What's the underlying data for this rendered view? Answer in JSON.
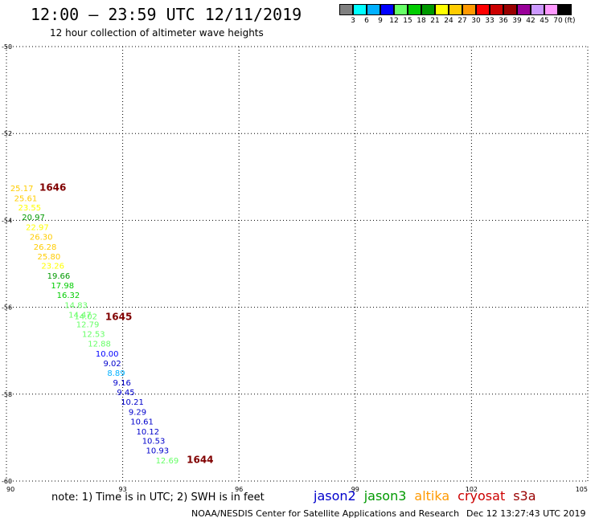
{
  "header": {
    "title": "12:00 – 23:59 UTC 12/11/2019",
    "subtitle": "12 hour collection of altimeter wave heights"
  },
  "colorbar": {
    "unit": "(ft)",
    "colors": [
      "#808080",
      "#00ffff",
      "#00b0ff",
      "#0000ff",
      "#66ff66",
      "#00cc00",
      "#009900",
      "#ffff00",
      "#ffcc00",
      "#ff9900",
      "#ff0000",
      "#cc0000",
      "#990000",
      "#990099",
      "#cc99ff",
      "#ff99ff",
      "#000000"
    ],
    "labels": [
      "3",
      "6",
      "9",
      "12",
      "15",
      "18",
      "21",
      "24",
      "27",
      "30",
      "33",
      "36",
      "39",
      "42",
      "45",
      "70"
    ]
  },
  "map": {
    "lon_range": [
      90,
      105
    ],
    "lat_range": [
      -60,
      -50
    ],
    "x_ticks": [
      "90",
      "93",
      "96",
      "99",
      "102",
      "105"
    ],
    "y_ticks": [
      "-50",
      "-52",
      "-54",
      "-56",
      "-58",
      "-60"
    ],
    "grid": "dotted"
  },
  "chart_data": {
    "type": "scatter",
    "x_label": "",
    "y_label": "",
    "points": [
      {
        "label": "25.17",
        "lon": 90.1,
        "lat": -53.25,
        "color": "#ffcc00"
      },
      {
        "label": "25.61",
        "lon": 90.2,
        "lat": -53.48,
        "color": "#ffcc00"
      },
      {
        "label": "23.55",
        "lon": 90.3,
        "lat": -53.7,
        "color": "#ffff00"
      },
      {
        "label": "20.97",
        "lon": 90.4,
        "lat": -53.92,
        "color": "#009900"
      },
      {
        "label": "22.97",
        "lon": 90.5,
        "lat": -54.15,
        "color": "#ffff00"
      },
      {
        "label": "26.30",
        "lon": 90.6,
        "lat": -54.37,
        "color": "#ffcc00"
      },
      {
        "label": "26.28",
        "lon": 90.7,
        "lat": -54.6,
        "color": "#ffcc00"
      },
      {
        "label": "25.80",
        "lon": 90.8,
        "lat": -54.82,
        "color": "#ffcc00"
      },
      {
        "label": "23.26",
        "lon": 90.9,
        "lat": -55.04,
        "color": "#ffff00"
      },
      {
        "label": "19.66",
        "lon": 91.05,
        "lat": -55.27,
        "color": "#009900"
      },
      {
        "label": "17.98",
        "lon": 91.15,
        "lat": -55.49,
        "color": "#00cc00"
      },
      {
        "label": "16.32",
        "lon": 91.3,
        "lat": -55.71,
        "color": "#00cc00"
      },
      {
        "label": "14.83",
        "lon": 91.5,
        "lat": -55.94,
        "color": "#66ff66"
      },
      {
        "label": "14.47",
        "lon": 91.6,
        "lat": -56.16,
        "color": "#66ff66"
      },
      {
        "label": "14.02",
        "lon": 91.75,
        "lat": -56.2,
        "color": "#66ff66"
      },
      {
        "label": "12.79",
        "lon": 91.8,
        "lat": -56.39,
        "color": "#66ff66"
      },
      {
        "label": "12.53",
        "lon": 91.95,
        "lat": -56.61,
        "color": "#66ff66"
      },
      {
        "label": "12.88",
        "lon": 92.1,
        "lat": -56.83,
        "color": "#66ff66"
      },
      {
        "label": "10.00",
        "lon": 92.3,
        "lat": -57.06,
        "color": "#0000ff"
      },
      {
        "label": "9.02",
        "lon": 92.5,
        "lat": -57.28,
        "color": "#0000cc"
      },
      {
        "label": "8.89",
        "lon": 92.6,
        "lat": -57.5,
        "color": "#00b0ff"
      },
      {
        "label": "9.16",
        "lon": 92.75,
        "lat": -57.73,
        "color": "#0000cc"
      },
      {
        "label": "9.45",
        "lon": 92.85,
        "lat": -57.95,
        "color": "#0000cc"
      },
      {
        "label": "10.21",
        "lon": 92.95,
        "lat": -58.17,
        "color": "#0000cc"
      },
      {
        "label": "9.29",
        "lon": 93.15,
        "lat": -58.4,
        "color": "#0000cc"
      },
      {
        "label": "10.61",
        "lon": 93.2,
        "lat": -58.62,
        "color": "#0000cc"
      },
      {
        "label": "10.12",
        "lon": 93.35,
        "lat": -58.85,
        "color": "#0000cc"
      },
      {
        "label": "10.53",
        "lon": 93.5,
        "lat": -59.07,
        "color": "#0000cc"
      },
      {
        "label": "10.93",
        "lon": 93.6,
        "lat": -59.29,
        "color": "#0000cc"
      },
      {
        "label": "12.69",
        "lon": 93.85,
        "lat": -59.52,
        "color": "#66ff66"
      }
    ],
    "time_labels": [
      {
        "label": "1646",
        "lon": 90.85,
        "lat": -53.24
      },
      {
        "label": "1645",
        "lon": 92.55,
        "lat": -56.22
      },
      {
        "label": "1644",
        "lon": 94.65,
        "lat": -59.51
      }
    ]
  },
  "note": "note:  1) Time is in UTC; 2) SWH is in feet",
  "legend": [
    {
      "name": "jason2",
      "color": "#0000cc"
    },
    {
      "name": "jason3",
      "color": "#009900"
    },
    {
      "name": "altika",
      "color": "#ff9900"
    },
    {
      "name": "cryosat",
      "color": "#cc0000"
    },
    {
      "name": "s3a",
      "color": "#990000"
    }
  ],
  "footer": {
    "credit": "NOAA/NESDIS Center for Satellite Applications and Research",
    "stamp": "Dec 12 13:27:43 UTC 2019"
  }
}
